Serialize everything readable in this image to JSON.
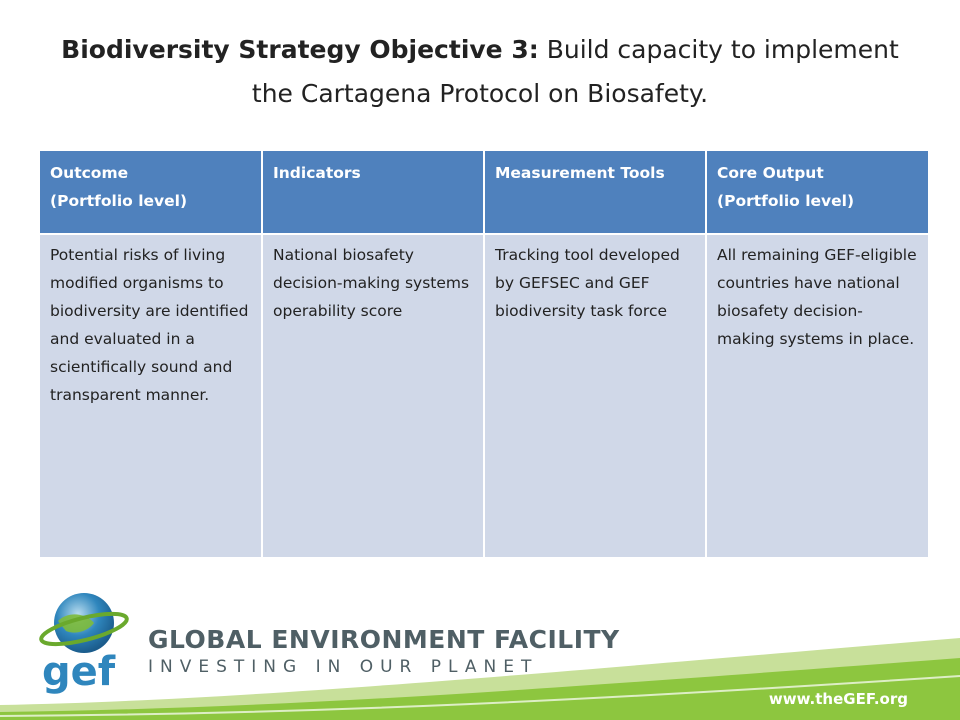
{
  "title": {
    "bold": "Biodiversity Strategy Objective 3:",
    "rest": " Build capacity to implement the Cartagena Protocol on Biosafety."
  },
  "table": {
    "headers": [
      "Outcome\n(Portfolio level)",
      "Indicators",
      "Measurement Tools",
      "Core Output\n(Portfolio level)"
    ],
    "row": [
      "Potential risks of living modified organisms to biodiversity are identified and evaluated in a scientifically sound and transparent manner.",
      "National biosafety decision-making systems operability score",
      "Tracking tool developed by GEFSEC and GEF biodiversity task force",
      "All remaining GEF-eligible countries have national biosafety decision-making systems in place."
    ]
  },
  "footer": {
    "logo_text": "gef",
    "org_name": "GLOBAL ENVIRONMENT FACILITY",
    "tagline": "INVESTING IN OUR PLANET",
    "url": "www.theGEF.org"
  },
  "colors": {
    "header_bg": "#4f81bd",
    "cell_bg": "#d0d8e8",
    "footer_green": "#8dc63f"
  }
}
